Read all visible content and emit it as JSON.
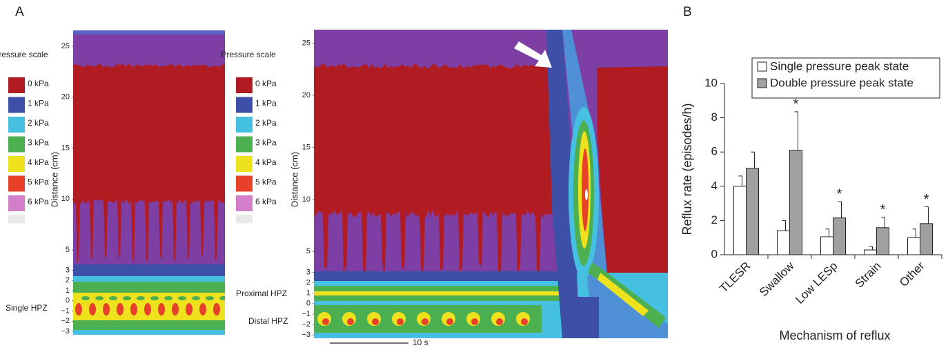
{
  "panel_labels": [
    "A",
    "B"
  ],
  "pressure_plots": [
    {
      "scale_title": "Pressure scale",
      "scale_labels": [
        "0 kPa",
        "1 kPa",
        "2 kPa",
        "3 kPa",
        "4 kPa",
        "5 kPa",
        "6 kPa",
        null
      ],
      "scale_colors": [
        "#b01c22",
        "#3d4fa6",
        "#46c0e0",
        "#4caf50",
        "#eee21e",
        "#e8412a",
        "#d27ec8",
        "#e8e8e8"
      ],
      "y_label": "Distance (cm)",
      "ylim": [
        -3.34,
        26.56
      ],
      "yticks": [
        25,
        20,
        15,
        10,
        5,
        3,
        2,
        1,
        0,
        {
          "value": -1,
          "label": "−1"
        },
        {
          "value": -2,
          "label": "−2"
        },
        {
          "value": -3,
          "label": "−3"
        }
      ],
      "annotations": [
        "Single HPZ"
      ]
    },
    {
      "scale_title": "Pressure scale",
      "scale_labels": [
        "0 kPa",
        "1 kPa",
        "2 kPa",
        "3 kPa",
        "4 kPa",
        "5 kPa",
        "6 kPa",
        null
      ],
      "scale_colors": [
        "#b01c22",
        "#3d4fa6",
        "#46c0e0",
        "#4caf50",
        "#eee21e",
        "#e8412a",
        "#d27ec8",
        "#e8e8e8"
      ],
      "y_label": "Distance (cm)",
      "ylim": [
        -3.33,
        26.3
      ],
      "yticks": [
        25,
        20,
        15,
        10,
        5,
        3,
        2,
        1,
        0,
        {
          "value": -1,
          "label": "−1"
        },
        {
          "value": -2,
          "label": "−2"
        },
        {
          "value": -3,
          "label": "−3"
        }
      ],
      "annotations": [
        "Proximal HPZ",
        "Distal HPZ"
      ],
      "scale_bar": "10 s"
    }
  ],
  "chart_data": {
    "type": "bar",
    "x_label": "Mechanism of reflux",
    "y_label": "Reflux rate (episodes/h)",
    "categories": [
      "TLESR",
      "Swallow",
      "Low LESp",
      "Strain",
      "Other"
    ],
    "ylim": [
      0,
      10
    ],
    "yticks": [
      0,
      2,
      4,
      6,
      8,
      10
    ],
    "legend": "top-right",
    "series": [
      {
        "name": "Single pressure peak state",
        "color": "#ffffff",
        "values": [
          4.0,
          1.4,
          1.05,
          0.28,
          1.0
        ],
        "errors": [
          0.6,
          0.6,
          0.45,
          0.2,
          0.5
        ]
      },
      {
        "name": "Double pressure peak state",
        "color": "#a0a0a0",
        "values": [
          5.05,
          6.1,
          2.15,
          1.58,
          1.82
        ],
        "errors": [
          0.95,
          2.25,
          0.95,
          0.6,
          0.98
        ],
        "significance": [
          null,
          "*",
          "*",
          "*",
          "*"
        ]
      }
    ]
  }
}
